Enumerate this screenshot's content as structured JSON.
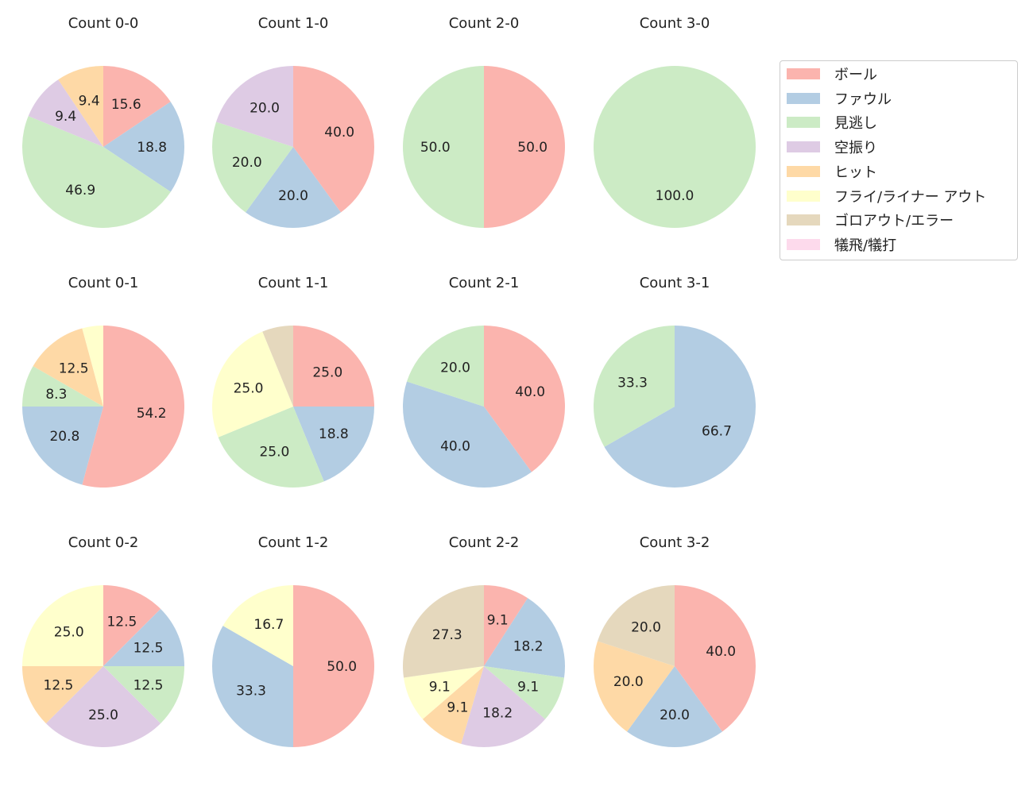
{
  "chart_data": {
    "type": "pie",
    "legend": {
      "placement": "top-right",
      "entries": [
        "ボール",
        "ファウル",
        "見逃し",
        "空振り",
        "ヒット",
        "フライ/ライナー アウト",
        "ゴロアウト/エラー",
        "犠飛/犠打"
      ],
      "colors": [
        "#fbb4ae",
        "#b3cde3",
        "#ccebc5",
        "#decbe4",
        "#fed9a6",
        "#ffffcc",
        "#e5d8bd",
        "#fddaec"
      ]
    },
    "start_angle": 90,
    "direction": "clockwise",
    "charts": [
      {
        "title": "Count 0-0",
        "values": [
          15.6,
          18.8,
          46.9,
          9.4,
          9.4,
          0,
          0,
          0
        ],
        "labels": [
          "15.6",
          "18.8",
          "46.9",
          "9.4",
          "9.4",
          "",
          "",
          ""
        ]
      },
      {
        "title": "Count 1-0",
        "values": [
          40,
          20,
          20,
          20,
          0,
          0,
          0,
          0
        ],
        "labels": [
          "40.0",
          "20.0",
          "20.0",
          "20.0",
          "",
          "",
          "",
          ""
        ]
      },
      {
        "title": "Count 2-0",
        "values": [
          50,
          0,
          50,
          0,
          0,
          0,
          0,
          0
        ],
        "labels": [
          "50.0",
          "",
          "50.0",
          "",
          "",
          "",
          "",
          ""
        ]
      },
      {
        "title": "Count 3-0",
        "values": [
          0,
          0,
          100,
          0,
          0,
          0,
          0,
          0
        ],
        "labels": [
          "",
          "",
          "100.0",
          "",
          "",
          "",
          "",
          ""
        ]
      },
      {
        "title": "Count 0-1",
        "values": [
          54.2,
          20.8,
          8.3,
          0,
          12.5,
          4.2,
          0,
          0
        ],
        "labels": [
          "54.2",
          "20.8",
          "8.3",
          "",
          "12.5",
          "",
          "",
          ""
        ]
      },
      {
        "title": "Count 1-1",
        "values": [
          25,
          18.8,
          25,
          0,
          0,
          25,
          6.2,
          0
        ],
        "labels": [
          "25.0",
          "18.8",
          "25.0",
          "",
          "",
          "25.0",
          "",
          ""
        ]
      },
      {
        "title": "Count 2-1",
        "values": [
          40,
          40,
          20,
          0,
          0,
          0,
          0,
          0
        ],
        "labels": [
          "40.0",
          "40.0",
          "20.0",
          "",
          "",
          "",
          "",
          ""
        ]
      },
      {
        "title": "Count 3-1",
        "values": [
          0,
          66.7,
          33.3,
          0,
          0,
          0,
          0,
          0
        ],
        "labels": [
          "",
          "66.7",
          "33.3",
          "",
          "",
          "",
          "",
          ""
        ]
      },
      {
        "title": "Count 0-2",
        "values": [
          12.5,
          12.5,
          12.5,
          25,
          12.5,
          25,
          0,
          0
        ],
        "labels": [
          "12.5",
          "12.5",
          "12.5",
          "25.0",
          "12.5",
          "25.0",
          "",
          ""
        ]
      },
      {
        "title": "Count 1-2",
        "values": [
          50,
          33.3,
          0,
          0,
          0,
          16.7,
          0,
          0
        ],
        "labels": [
          "50.0",
          "33.3",
          "",
          "",
          "",
          "16.7",
          "",
          ""
        ]
      },
      {
        "title": "Count 2-2",
        "values": [
          9.1,
          18.2,
          9.1,
          18.2,
          9.1,
          9.1,
          27.3,
          0
        ],
        "labels": [
          "9.1",
          "18.2",
          "9.1",
          "18.2",
          "9.1",
          "9.1",
          "27.3",
          ""
        ]
      },
      {
        "title": "Count 3-2",
        "values": [
          40,
          20,
          0,
          0,
          20,
          0,
          20,
          0
        ],
        "labels": [
          "40.0",
          "20.0",
          "",
          "",
          "20.0",
          "",
          "20.0",
          ""
        ]
      }
    ]
  }
}
